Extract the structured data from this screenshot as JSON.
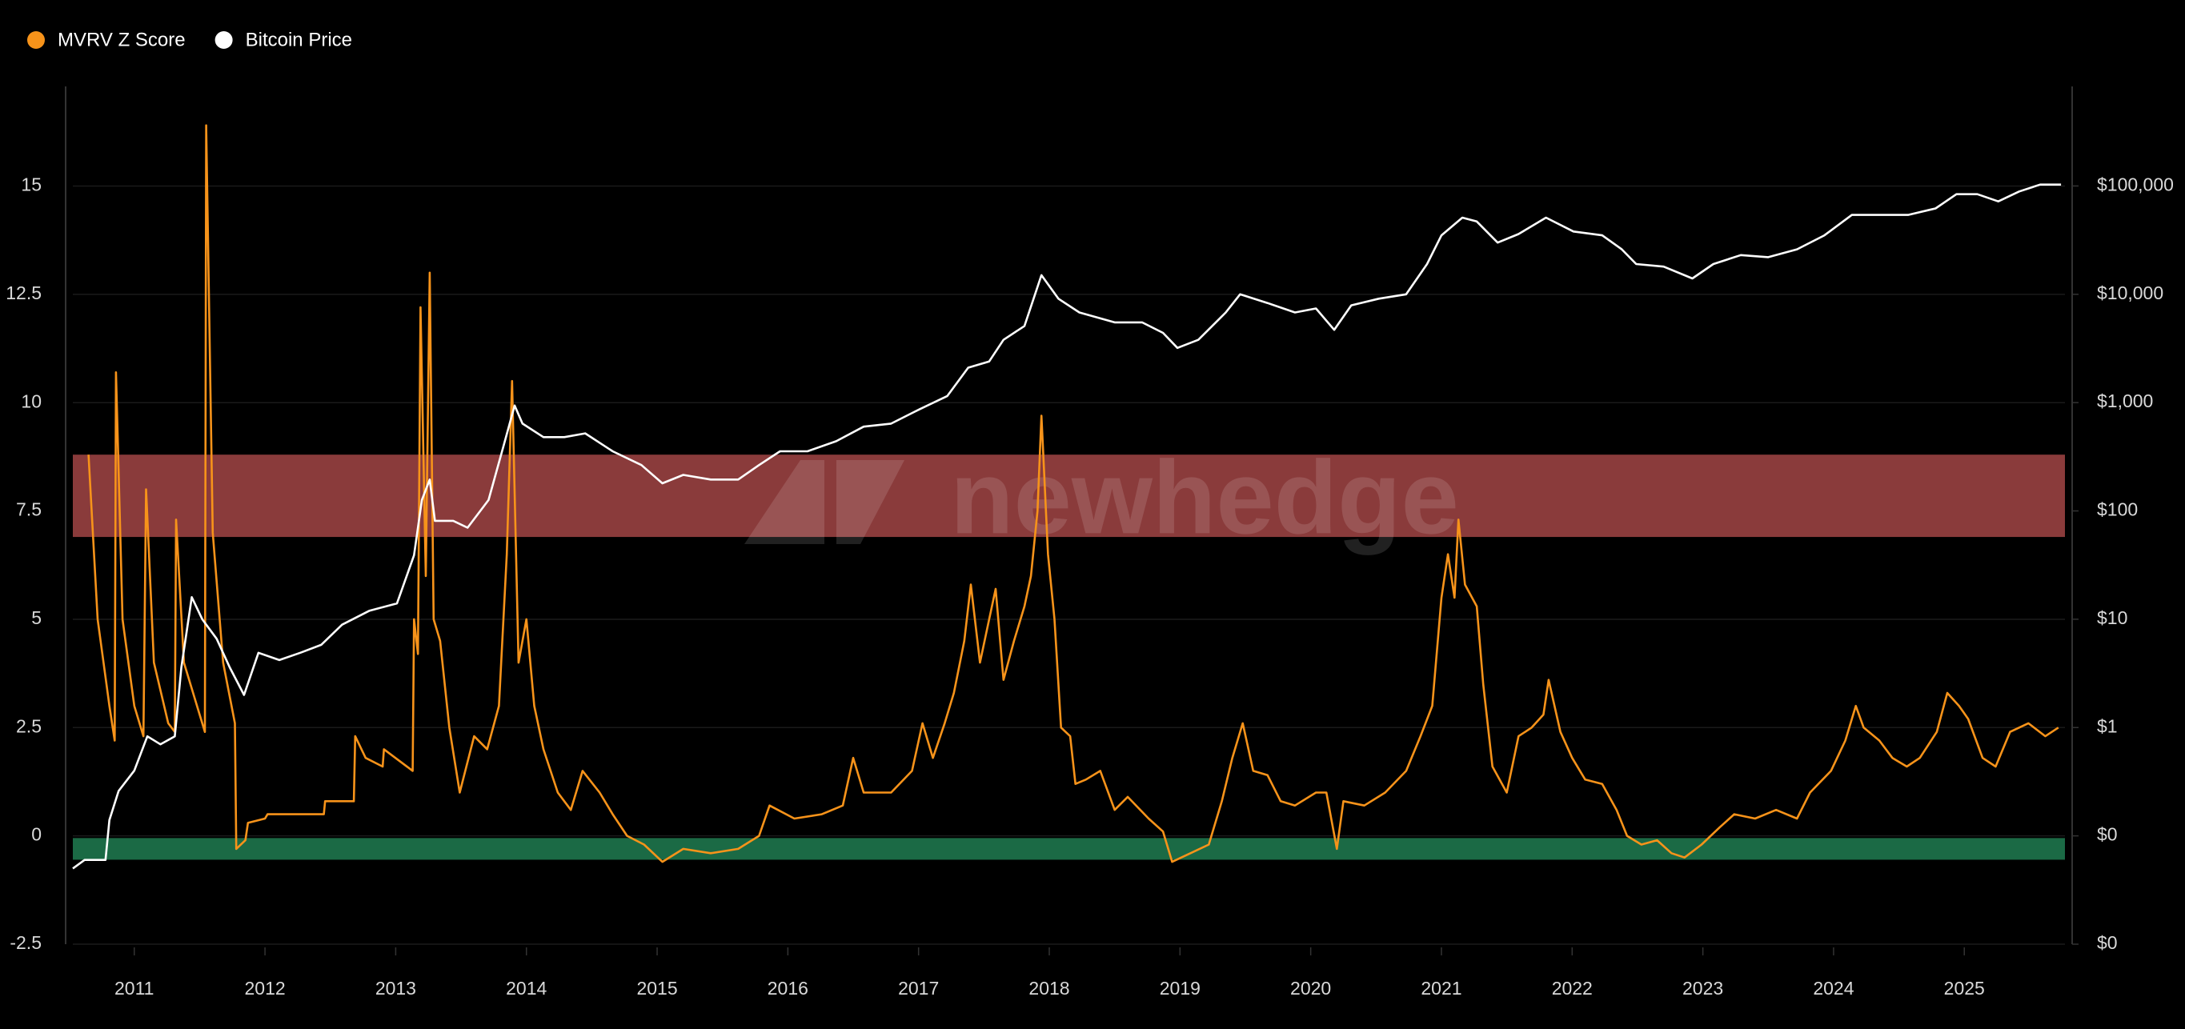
{
  "chart_data": {
    "type": "line",
    "watermark": "newhedge",
    "xlim": [
      2010.53,
      2025.77
    ],
    "xticks": [
      2011,
      2012,
      2013,
      2014,
      2015,
      2016,
      2017,
      2018,
      2019,
      2020,
      2021,
      2022,
      2023,
      2024,
      2025
    ],
    "ylim": [
      -2.5,
      17.3
    ],
    "yticks": [
      -2.5,
      0,
      2.5,
      5,
      7.5,
      10,
      12.5,
      15
    ],
    "y2lim": [
      0.01,
      830000
    ],
    "y2log": true,
    "y2ticks": [
      {
        "value": 0.01,
        "label": "$0"
      },
      {
        "value": 0.1,
        "label": "$0"
      },
      {
        "value": 1,
        "label": "$1"
      },
      {
        "value": 10,
        "label": "$10"
      },
      {
        "value": 100,
        "label": "$100"
      },
      {
        "value": 1000,
        "label": "$1,000"
      },
      {
        "value": 10000,
        "label": "$10,000"
      },
      {
        "value": 100000,
        "label": "$100,000"
      }
    ],
    "grid": true,
    "legend": "top-left",
    "bands": [
      {
        "from": 6.9,
        "to": 8.8,
        "color": "#8a3b3b"
      },
      {
        "from": -0.55,
        "to": -0.05,
        "color": "#1b6a45"
      }
    ],
    "series": [
      {
        "name": "MVRV Z Score",
        "color": "#f7931a",
        "x": [
          2010.65,
          2010.72,
          2010.81,
          2010.85,
          2010.86,
          2010.91,
          2011.0,
          2011.07,
          2011.09,
          2011.15,
          2011.26,
          2011.31,
          2011.32,
          2011.38,
          2011.52,
          2011.54,
          2011.55,
          2011.6,
          2011.68,
          2011.77,
          2011.78,
          2011.85,
          2011.87,
          2012.0,
          2012.02,
          2012.45,
          2012.46,
          2012.68,
          2012.69,
          2012.77,
          2012.9,
          2012.91,
          2013.13,
          2013.14,
          2013.17,
          2013.19,
          2013.23,
          2013.26,
          2013.29,
          2013.34,
          2013.41,
          2013.49,
          2013.6,
          2013.7,
          2013.79,
          2013.85,
          2013.89,
          2013.94,
          2014.0,
          2014.06,
          2014.13,
          2014.24,
          2014.34,
          2014.43,
          2014.56,
          2014.66,
          2014.77,
          2014.9,
          2015.04,
          2015.2,
          2015.41,
          2015.62,
          2015.78,
          2015.86,
          2016.05,
          2016.26,
          2016.42,
          2016.5,
          2016.58,
          2016.79,
          2016.95,
          2017.03,
          2017.11,
          2017.2,
          2017.27,
          2017.35,
          2017.4,
          2017.47,
          2017.54,
          2017.59,
          2017.65,
          2017.73,
          2017.81,
          2017.86,
          2017.91,
          2017.94,
          2017.99,
          2018.04,
          2018.09,
          2018.16,
          2018.2,
          2018.28,
          2018.39,
          2018.5,
          2018.6,
          2018.76,
          2018.87,
          2018.94,
          2019.08,
          2019.22,
          2019.32,
          2019.4,
          2019.48,
          2019.56,
          2019.67,
          2019.77,
          2019.88,
          2020.04,
          2020.12,
          2020.2,
          2020.25,
          2020.41,
          2020.57,
          2020.73,
          2020.84,
          2020.93,
          2021.0,
          2021.05,
          2021.1,
          2021.13,
          2021.18,
          2021.27,
          2021.32,
          2021.39,
          2021.5,
          2021.59,
          2021.69,
          2021.78,
          2021.82,
          2021.91,
          2022.0,
          2022.1,
          2022.23,
          2022.34,
          2022.42,
          2022.53,
          2022.65,
          2022.76,
          2022.86,
          2022.99,
          2023.13,
          2023.24,
          2023.4,
          2023.56,
          2023.72,
          2023.82,
          2023.98,
          2024.09,
          2024.17,
          2024.23,
          2024.35,
          2024.45,
          2024.56,
          2024.66,
          2024.79,
          2024.87,
          2024.96,
          2025.03,
          2025.14,
          2025.24,
          2025.35,
          2025.49,
          2025.62,
          2025.72
        ],
        "values": [
          8.8,
          5.0,
          3.0,
          2.2,
          10.7,
          5.0,
          3.0,
          2.3,
          8.0,
          4.0,
          2.6,
          2.4,
          7.3,
          4.0,
          2.6,
          2.4,
          16.4,
          7.0,
          4.0,
          2.6,
          -0.3,
          -0.1,
          0.3,
          0.4,
          0.5,
          0.5,
          0.8,
          0.8,
          2.3,
          1.8,
          1.6,
          2.0,
          1.5,
          5.0,
          4.2,
          12.2,
          6.0,
          13.0,
          5.0,
          4.5,
          2.5,
          1.0,
          2.3,
          2.0,
          3.0,
          6.5,
          10.5,
          4.0,
          5.0,
          3.0,
          2.0,
          1.0,
          0.6,
          1.5,
          1.0,
          0.5,
          0.0,
          -0.2,
          -0.6,
          -0.3,
          -0.4,
          -0.3,
          0.0,
          0.7,
          0.4,
          0.5,
          0.7,
          1.8,
          1.0,
          1.0,
          1.5,
          2.6,
          1.8,
          2.6,
          3.3,
          4.5,
          5.8,
          4.0,
          5.0,
          5.7,
          3.6,
          4.5,
          5.3,
          6.0,
          7.5,
          9.7,
          6.5,
          5.0,
          2.5,
          2.3,
          1.2,
          1.3,
          1.5,
          0.6,
          0.9,
          0.4,
          0.1,
          -0.6,
          -0.4,
          -0.2,
          0.8,
          1.8,
          2.6,
          1.5,
          1.4,
          0.8,
          0.7,
          1.0,
          1.0,
          -0.3,
          0.8,
          0.7,
          1.0,
          1.5,
          2.3,
          3.0,
          5.5,
          6.5,
          5.5,
          7.3,
          5.8,
          5.3,
          3.5,
          1.6,
          1.0,
          2.3,
          2.5,
          2.8,
          3.6,
          2.4,
          1.8,
          1.3,
          1.2,
          0.6,
          0.0,
          -0.2,
          -0.1,
          -0.4,
          -0.5,
          -0.2,
          0.2,
          0.5,
          0.4,
          0.6,
          0.4,
          1.0,
          1.5,
          2.2,
          3.0,
          2.5,
          2.2,
          1.8,
          1.6,
          1.8,
          2.4,
          3.3,
          3.0,
          2.7,
          1.8,
          1.6,
          2.4,
          2.6,
          2.3,
          2.5
        ]
      },
      {
        "name": "Bitcoin Price",
        "color": "#ffffff",
        "axis": "y2",
        "x": [
          2010.53,
          2010.62,
          2010.78,
          2010.81,
          2010.88,
          2011.0,
          2011.1,
          2011.2,
          2011.31,
          2011.36,
          2011.44,
          2011.52,
          2011.63,
          2011.73,
          2011.84,
          2011.95,
          2012.11,
          2012.27,
          2012.43,
          2012.59,
          2012.8,
          2013.01,
          2013.14,
          2013.2,
          2013.26,
          2013.3,
          2013.44,
          2013.55,
          2013.71,
          2013.83,
          2013.91,
          2013.97,
          2014.13,
          2014.29,
          2014.45,
          2014.66,
          2014.88,
          2015.04,
          2015.2,
          2015.41,
          2015.62,
          2015.78,
          2015.94,
          2016.15,
          2016.37,
          2016.58,
          2016.79,
          2017.01,
          2017.22,
          2017.38,
          2017.54,
          2017.65,
          2017.81,
          2017.94,
          2018.07,
          2018.23,
          2018.5,
          2018.71,
          2018.87,
          2018.98,
          2019.14,
          2019.35,
          2019.46,
          2019.67,
          2019.88,
          2020.04,
          2020.18,
          2020.31,
          2020.52,
          2020.73,
          2020.89,
          2021.0,
          2021.16,
          2021.27,
          2021.43,
          2021.59,
          2021.8,
          2022.01,
          2022.23,
          2022.38,
          2022.49,
          2022.7,
          2022.92,
          2023.08,
          2023.29,
          2023.5,
          2023.72,
          2023.93,
          2024.14,
          2024.35,
          2024.57,
          2024.78,
          2024.94,
          2025.1,
          2025.26,
          2025.42,
          2025.58,
          2025.74
        ],
        "values": [
          0.05,
          0.06,
          0.06,
          0.14,
          0.26,
          0.4,
          0.83,
          0.7,
          0.83,
          3.6,
          16,
          10,
          6.6,
          3.6,
          2.0,
          4.9,
          4.2,
          4.9,
          5.8,
          8.9,
          12,
          14,
          39,
          126,
          195,
          81,
          81,
          70,
          126,
          420,
          940,
          640,
          480,
          480,
          520,
          355,
          265,
          180,
          215,
          195,
          195,
          265,
          355,
          355,
          440,
          600,
          640,
          870,
          1150,
          2100,
          2400,
          3800,
          5100,
          15000,
          9100,
          6800,
          5500,
          5500,
          4400,
          3200,
          3800,
          6800,
          10000,
          8300,
          6800,
          7400,
          4700,
          7900,
          9100,
          10000,
          19000,
          35000,
          51000,
          47000,
          30000,
          36000,
          51000,
          38000,
          35000,
          26000,
          19000,
          18000,
          14000,
          19000,
          23000,
          22000,
          26000,
          35000,
          54000,
          54000,
          54000,
          62000,
          84000,
          84000,
          72000,
          89000,
          103000,
          103000
        ]
      }
    ]
  }
}
